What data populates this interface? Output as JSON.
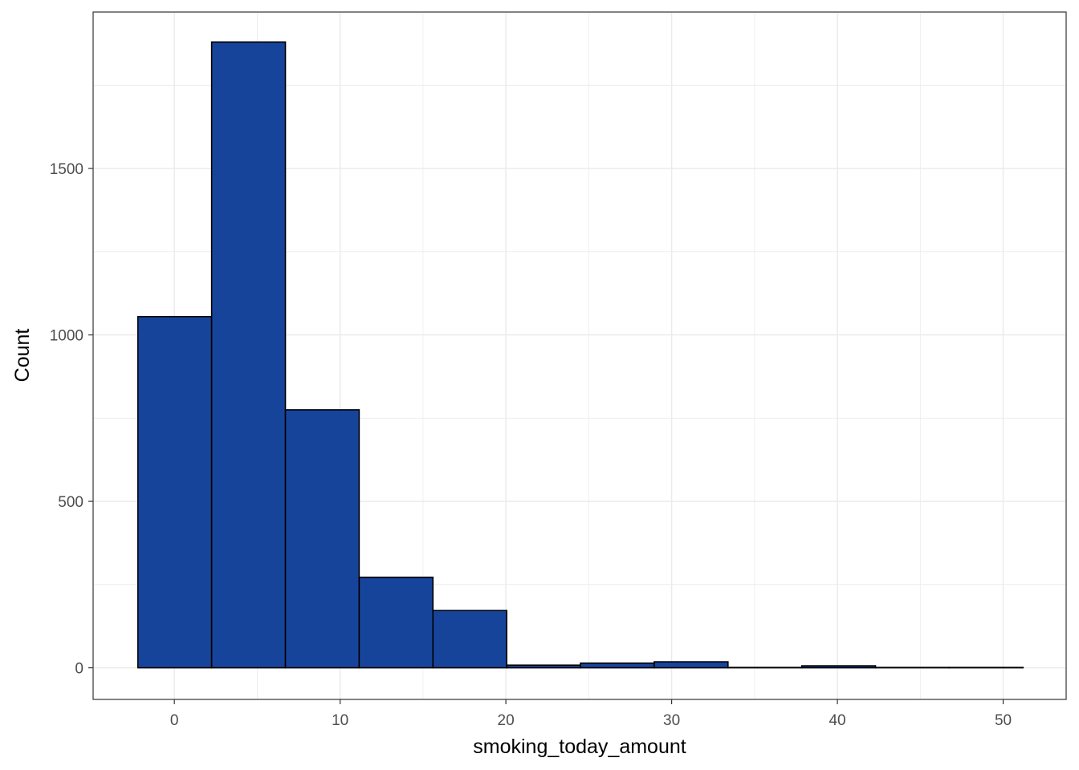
{
  "chart_data": {
    "type": "bar",
    "title": "",
    "xlabel": "smoking_today_amount",
    "ylabel": "Count",
    "xlim": [
      -4.9,
      53.8
    ],
    "ylim": [
      -95,
      1970
    ],
    "xticks": [
      0,
      10,
      20,
      30,
      40,
      50
    ],
    "yticks": [
      0,
      500,
      1000,
      1500
    ],
    "grid": true,
    "bin_edges": [
      -2.2,
      2.25,
      6.7,
      11.15,
      15.6,
      20.05,
      24.5,
      28.95,
      33.4,
      37.85,
      42.3,
      46.75,
      51.2
    ],
    "counts": [
      1055,
      1880,
      775,
      272,
      172,
      8,
      14,
      18,
      1,
      6,
      1,
      1
    ],
    "colors": {
      "fill": "#17449b",
      "outline": "#000000",
      "grid": "#ebebeb",
      "panel_border": "#333333"
    }
  }
}
